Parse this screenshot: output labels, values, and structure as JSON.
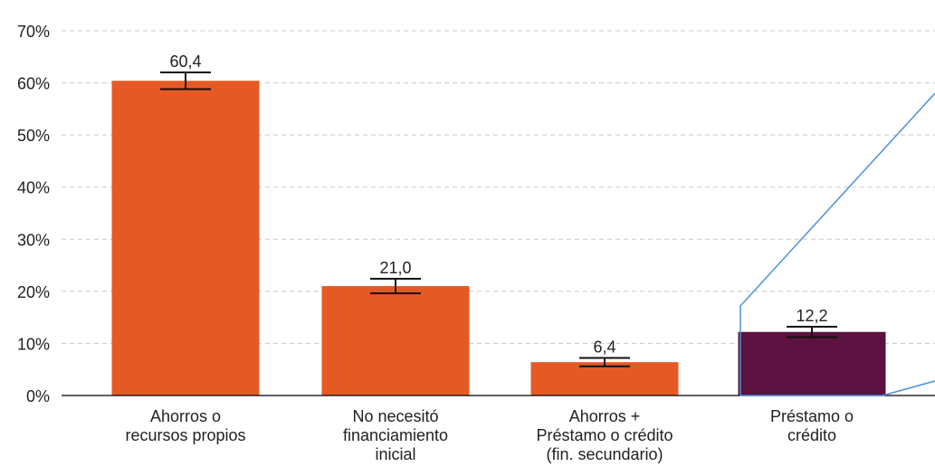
{
  "chart_data": {
    "type": "bar",
    "categories": [
      [
        "Ahorros o",
        "recursos propios"
      ],
      [
        "No necesitó",
        "financiamiento",
        "inicial"
      ],
      [
        "Ahorros +",
        "Préstamo o crédito",
        "(fin. secundario)"
      ],
      [
        "Préstamo o",
        "crédito"
      ]
    ],
    "values": [
      60.4,
      21.0,
      6.4,
      12.2
    ],
    "value_labels": [
      "60,4",
      "21,0",
      "6,4",
      "12,2"
    ],
    "error_low": [
      58.8,
      19.6,
      5.6,
      11.2
    ],
    "error_high": [
      62.0,
      22.4,
      7.2,
      13.2
    ],
    "colors": [
      "#e55a24",
      "#e55a24",
      "#e55a24",
      "#5c1240"
    ],
    "ylim": [
      0,
      70
    ],
    "yticks": [
      0,
      10,
      20,
      30,
      40,
      50,
      60,
      70
    ],
    "ytick_labels": [
      "0%",
      "10%",
      "20%",
      "30%",
      "40%",
      "50%",
      "60%",
      "70%"
    ],
    "grid": true,
    "title": "",
    "xlabel": "",
    "ylabel": ""
  },
  "colors": {
    "callout": "#4a90d9",
    "grid": "#c8c8c8"
  }
}
